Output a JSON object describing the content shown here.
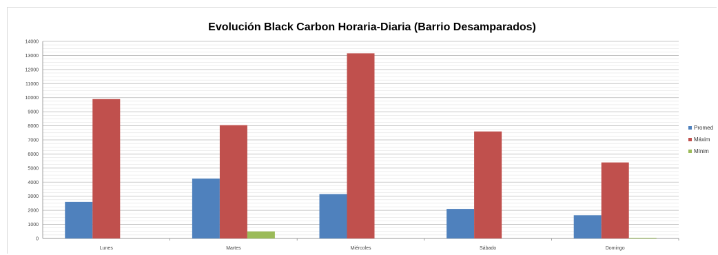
{
  "chart_data": {
    "type": "bar",
    "title": "Evolución Black Carbon Horaria-Diaria (Barrio Desamparados)",
    "xlabel": "",
    "ylabel": "",
    "categories": [
      "Lunes",
      "Martes",
      "Miércoles",
      "Sábado",
      "Domingo"
    ],
    "series": [
      {
        "name": "Promed",
        "color": "#4f81bd",
        "values": [
          2600,
          4250,
          3150,
          2100,
          1650
        ]
      },
      {
        "name": "Máxim",
        "color": "#c0504d",
        "values": [
          9900,
          8050,
          13150,
          7600,
          5400
        ]
      },
      {
        "name": "Mínim",
        "color": "#9bbb59",
        "values": [
          0,
          500,
          0,
          0,
          50
        ]
      }
    ],
    "ylim": [
      0,
      14000
    ],
    "yticks": [
      0,
      1000,
      2000,
      3000,
      4000,
      5000,
      6000,
      7000,
      8000,
      9000,
      10000,
      11000,
      12000,
      13000,
      14000
    ],
    "grid": true,
    "legend_position": "right"
  }
}
